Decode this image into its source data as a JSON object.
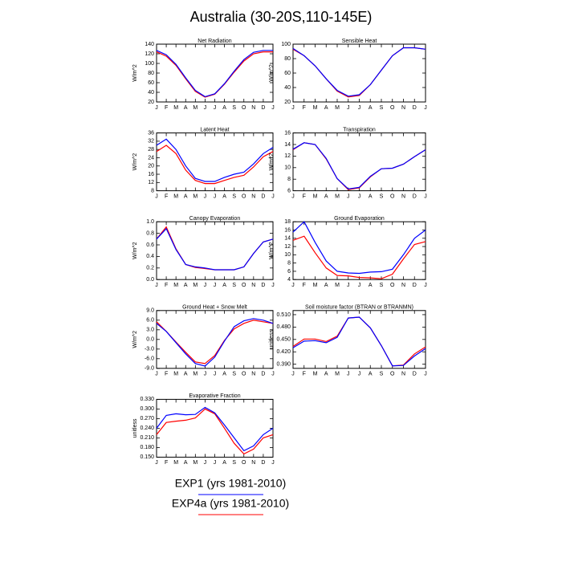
{
  "title": "Australia (30-20S,110-145E)",
  "legend": {
    "items": [
      {
        "name": "EXP1 (yrs 1981-2010)",
        "color": "#0000ff"
      },
      {
        "name": "EXP4a (yrs 1981-2010)",
        "color": "#ff0000"
      }
    ]
  },
  "chart_data": [
    {
      "type": "line",
      "title": "Net Radiation",
      "y_label": "W/m^2",
      "categories": [
        "J",
        "F",
        "M",
        "A",
        "M",
        "J",
        "J",
        "A",
        "S",
        "O",
        "N",
        "D",
        "J"
      ],
      "ylim": [
        20,
        140
      ],
      "yticks": [
        20,
        40,
        60,
        80,
        100,
        120,
        140
      ],
      "series": [
        {
          "values": [
            127,
            118,
            98,
            70,
            44,
            31,
            37,
            58,
            84,
            108,
            123,
            127,
            127
          ]
        },
        {
          "values": [
            124,
            115,
            96,
            68,
            42,
            30,
            36,
            57,
            82,
            105,
            120,
            124,
            124
          ]
        }
      ]
    },
    {
      "type": "line",
      "title": "Sensible Heat",
      "y_label": "W/m^2",
      "categories": [
        "J",
        "F",
        "M",
        "A",
        "M",
        "J",
        "J",
        "A",
        "S",
        "O",
        "N",
        "D",
        "J"
      ],
      "ylim": [
        20,
        100
      ],
      "yticks": [
        20,
        40,
        60,
        80,
        100
      ],
      "series": [
        {
          "values": [
            94,
            84,
            70,
            52,
            36,
            28,
            30,
            44,
            64,
            84,
            95,
            95,
            93
          ]
        },
        {
          "values": [
            93,
            84,
            70,
            52,
            35,
            27,
            29,
            44,
            64,
            84,
            95,
            95,
            93
          ]
        }
      ]
    },
    {
      "type": "line",
      "title": "Latent Heat",
      "y_label": "W/m^2",
      "categories": [
        "J",
        "F",
        "M",
        "A",
        "M",
        "J",
        "J",
        "A",
        "S",
        "O",
        "N",
        "D",
        "J"
      ],
      "ylim": [
        8,
        36
      ],
      "yticks": [
        8,
        12,
        16,
        20,
        24,
        28,
        32,
        36
      ],
      "series": [
        {
          "values": [
            30,
            33,
            28,
            20,
            14,
            12.5,
            12.5,
            14.5,
            16,
            17,
            21,
            26,
            29
          ]
        },
        {
          "values": [
            27,
            30,
            26,
            18,
            13,
            11.5,
            11.5,
            13,
            14.5,
            15.5,
            19.5,
            24.5,
            27
          ]
        }
      ]
    },
    {
      "type": "line",
      "title": "Transpiration",
      "y_label": "W/m^2",
      "categories": [
        "J",
        "F",
        "M",
        "A",
        "M",
        "J",
        "J",
        "A",
        "S",
        "O",
        "N",
        "D",
        "J"
      ],
      "ylim": [
        6,
        16
      ],
      "yticks": [
        6,
        8,
        10,
        12,
        14,
        16
      ],
      "series": [
        {
          "values": [
            13.2,
            14.3,
            14,
            11.6,
            8.1,
            6.3,
            6.6,
            8.5,
            9.8,
            9.9,
            10.6,
            11.9,
            13.1
          ]
        },
        {
          "values": [
            13.1,
            14.3,
            14,
            11.5,
            8.1,
            6.2,
            6.5,
            8.4,
            9.8,
            9.9,
            10.6,
            11.9,
            13.1
          ]
        }
      ]
    },
    {
      "type": "line",
      "title": "Canopy Evaporation",
      "y_label": "W/m^2",
      "categories": [
        "J",
        "F",
        "M",
        "A",
        "M",
        "J",
        "J",
        "A",
        "S",
        "O",
        "N",
        "D",
        "J"
      ],
      "ylim": [
        0,
        1
      ],
      "yticks": [
        {
          "value": 0,
          "label": "0.0"
        },
        {
          "value": 0.2,
          "label": "0.2"
        },
        {
          "value": 0.4,
          "label": "0.4"
        },
        {
          "value": 0.6,
          "label": "0.6"
        },
        {
          "value": 0.8,
          "label": "0.8"
        },
        {
          "value": 1,
          "label": "1.0"
        }
      ],
      "series": [
        {
          "values": [
            0.7,
            0.88,
            0.52,
            0.26,
            0.22,
            0.2,
            0.17,
            0.17,
            0.17,
            0.22,
            0.45,
            0.65,
            0.7
          ]
        },
        {
          "values": [
            0.7,
            0.91,
            0.53,
            0.26,
            0.21,
            0.19,
            0.17,
            0.17,
            0.17,
            0.22,
            0.45,
            0.65,
            0.7
          ]
        }
      ]
    },
    {
      "type": "line",
      "title": "Ground Evaporation",
      "y_label": "W/m^2",
      "categories": [
        "J",
        "F",
        "M",
        "A",
        "M",
        "J",
        "J",
        "A",
        "S",
        "O",
        "N",
        "D",
        "J"
      ],
      "ylim": [
        4,
        18
      ],
      "yticks": [
        4,
        6,
        8,
        10,
        12,
        14,
        16,
        18
      ],
      "series": [
        {
          "values": [
            15.5,
            18,
            13,
            8.5,
            6,
            5.6,
            5.5,
            5.8,
            5.9,
            6.5,
            10,
            14,
            16
          ]
        },
        {
          "values": [
            13.5,
            14.5,
            10.5,
            6.8,
            5,
            4.9,
            4.5,
            4.4,
            4.2,
            5.3,
            9,
            12.5,
            13.2
          ]
        }
      ]
    },
    {
      "type": "line",
      "title": "Ground Heat + Snow Melt",
      "y_label": "W/m^2",
      "categories": [
        "J",
        "F",
        "M",
        "A",
        "M",
        "J",
        "J",
        "A",
        "S",
        "O",
        "N",
        "D",
        "J"
      ],
      "ylim": [
        -9,
        9
      ],
      "yticks": [
        {
          "value": -9,
          "label": "-9.0"
        },
        {
          "value": -6,
          "label": "-6.0"
        },
        {
          "value": -3,
          "label": "-3.0"
        },
        {
          "value": 0,
          "label": "0.0"
        },
        {
          "value": 3,
          "label": "3.0"
        },
        {
          "value": 6,
          "label": "6.0"
        },
        {
          "value": 9,
          "label": "9.0"
        }
      ],
      "series": [
        {
          "values": [
            5,
            2.5,
            -1,
            -4.5,
            -7.5,
            -8.3,
            -5.5,
            -0.5,
            4,
            5.8,
            6.5,
            6,
            5
          ]
        },
        {
          "values": [
            5.5,
            2.5,
            -0.8,
            -4,
            -7,
            -7.5,
            -5,
            -0.3,
            3.3,
            5,
            6,
            5.5,
            5
          ]
        }
      ]
    },
    {
      "type": "line",
      "title": "Soil moisture factor (BTRAN or BTRANMN)",
      "y_label": "unitless",
      "categories": [
        "J",
        "F",
        "M",
        "A",
        "M",
        "J",
        "J",
        "A",
        "S",
        "O",
        "N",
        "D",
        "J"
      ],
      "ylim": [
        0.38,
        0.52
      ],
      "yticks": [
        {
          "value": 0.39,
          "label": "0.390"
        },
        {
          "value": 0.42,
          "label": "0.420"
        },
        {
          "value": 0.45,
          "label": "0.450"
        },
        {
          "value": 0.48,
          "label": "0.480"
        },
        {
          "value": 0.51,
          "label": "0.510"
        }
      ],
      "series": [
        {
          "values": [
            0.43,
            0.446,
            0.447,
            0.442,
            0.455,
            0.502,
            0.504,
            0.478,
            0.435,
            0.386,
            0.387,
            0.41,
            0.428
          ]
        },
        {
          "values": [
            0.433,
            0.451,
            0.451,
            0.445,
            0.458,
            0.502,
            0.504,
            0.478,
            0.435,
            0.386,
            0.388,
            0.415,
            0.432
          ]
        }
      ]
    },
    {
      "type": "line",
      "title": "Evaporative Fraction",
      "y_label": "unitless",
      "categories": [
        "J",
        "F",
        "M",
        "A",
        "M",
        "J",
        "J",
        "A",
        "S",
        "O",
        "N",
        "D",
        "J"
      ],
      "ylim": [
        0.15,
        0.33
      ],
      "yticks": [
        {
          "value": 0.15,
          "label": "0.150"
        },
        {
          "value": 0.18,
          "label": "0.180"
        },
        {
          "value": 0.21,
          "label": "0.210"
        },
        {
          "value": 0.24,
          "label": "0.240"
        },
        {
          "value": 0.27,
          "label": "0.270"
        },
        {
          "value": 0.3,
          "label": "0.300"
        },
        {
          "value": 0.33,
          "label": "0.330"
        }
      ],
      "series": [
        {
          "values": [
            0.24,
            0.28,
            0.285,
            0.282,
            0.283,
            0.305,
            0.288,
            0.25,
            0.21,
            0.17,
            0.185,
            0.22,
            0.24
          ]
        },
        {
          "values": [
            0.22,
            0.258,
            0.262,
            0.265,
            0.272,
            0.3,
            0.285,
            0.24,
            0.193,
            0.16,
            0.175,
            0.21,
            0.22
          ]
        }
      ]
    }
  ]
}
